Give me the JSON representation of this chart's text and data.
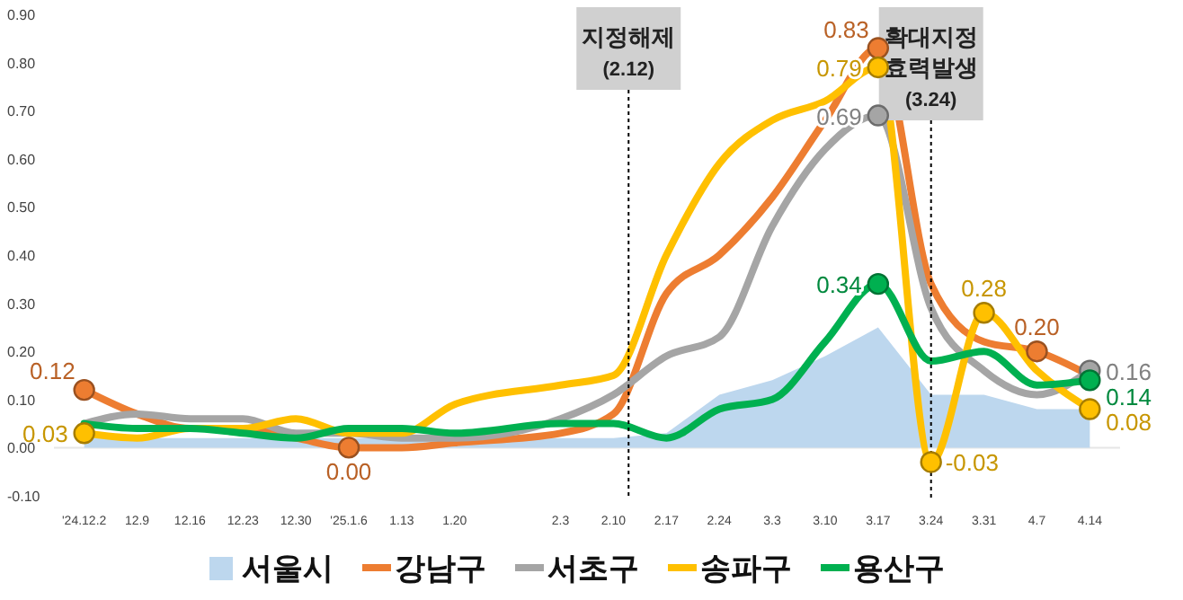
{
  "chart_data": {
    "type": "line",
    "x": [
      "2024-12-02",
      "2024-12-09",
      "2024-12-16",
      "2024-12-23",
      "2024-12-30",
      "2025-01-06",
      "2025-01-13",
      "2025-01-20",
      "2025-02-03",
      "2025-02-10",
      "2025-02-17",
      "2025-02-24",
      "2025-03-03",
      "2025-03-10",
      "2025-03-17",
      "2025-03-24",
      "2025-03-31",
      "2025-04-07",
      "2025-04-14"
    ],
    "xlim": [
      "2024-11-28",
      "2025-04-18"
    ],
    "xticks": [
      {
        "value": "2024-12-02",
        "label": "'24.12.2"
      },
      {
        "value": "2024-12-09",
        "label": "12.9"
      },
      {
        "value": "2024-12-16",
        "label": "12.16"
      },
      {
        "value": "2024-12-23",
        "label": "12.23"
      },
      {
        "value": "2024-12-30",
        "label": "12.30"
      },
      {
        "value": "2025-01-06",
        "label": "'25.1.6"
      },
      {
        "value": "2025-01-13",
        "label": "1.13"
      },
      {
        "value": "2025-01-20",
        "label": "1.20"
      },
      {
        "value": "2025-02-03",
        "label": "2.3"
      },
      {
        "value": "2025-02-10",
        "label": "2.10"
      },
      {
        "value": "2025-02-17",
        "label": "2.17"
      },
      {
        "value": "2025-02-24",
        "label": "2.24"
      },
      {
        "value": "2025-03-03",
        "label": "3.3"
      },
      {
        "value": "2025-03-10",
        "label": "3.10"
      },
      {
        "value": "2025-03-17",
        "label": "3.17"
      },
      {
        "value": "2025-03-24",
        "label": "3.24"
      },
      {
        "value": "2025-03-31",
        "label": "3.31"
      },
      {
        "value": "2025-04-07",
        "label": "4.7"
      },
      {
        "value": "2025-04-14",
        "label": "4.14"
      }
    ],
    "ylim": [
      -0.1,
      0.9
    ],
    "yticks": [
      {
        "value": -0.1,
        "label": "-0.10"
      },
      {
        "value": 0,
        "label": "0.00"
      },
      {
        "value": 0.1,
        "label": "0.10"
      },
      {
        "value": 0.2,
        "label": "0.20"
      },
      {
        "value": 0.3,
        "label": "0.30"
      },
      {
        "value": 0.4,
        "label": "0.40"
      },
      {
        "value": 0.5,
        "label": "0.50"
      },
      {
        "value": 0.6,
        "label": "0.60"
      },
      {
        "value": 0.7,
        "label": "0.70"
      },
      {
        "value": 0.8,
        "label": "0.80"
      },
      {
        "value": 0.9,
        "label": "0.90"
      }
    ],
    "grid": false,
    "legend": "bottom",
    "series": [
      {
        "name": "서울시",
        "type": "area",
        "color": "#bdd7ee",
        "values": [
          0.02,
          0.02,
          0.02,
          0.02,
          0.02,
          0.02,
          0.02,
          0.02,
          0.02,
          0.02,
          0.03,
          0.11,
          0.14,
          0.19,
          0.25,
          0.11,
          0.11,
          0.08,
          0.08
        ]
      },
      {
        "name": "강남구",
        "color": "#ed7d31",
        "values": [
          0.12,
          0.07,
          0.04,
          0.04,
          0.02,
          0.0,
          0.0,
          0.01,
          0.03,
          0.07,
          0.32,
          0.4,
          0.52,
          0.68,
          0.83,
          0.34,
          0.22,
          0.2,
          0.15
        ],
        "value_labels": [
          "0.12",
          null,
          null,
          null,
          null,
          "0.00",
          null,
          null,
          null,
          null,
          null,
          null,
          null,
          null,
          "0.83",
          null,
          null,
          "0.20",
          null
        ]
      },
      {
        "name": "서초구",
        "color": "#a5a5a5",
        "values": [
          0.05,
          0.07,
          0.06,
          0.06,
          0.03,
          0.03,
          0.02,
          0.02,
          0.06,
          0.11,
          0.19,
          0.23,
          0.46,
          0.62,
          0.69,
          0.29,
          0.16,
          0.11,
          0.16
        ],
        "value_labels": [
          null,
          null,
          null,
          null,
          null,
          null,
          null,
          null,
          null,
          null,
          null,
          null,
          null,
          null,
          "0.69",
          null,
          null,
          null,
          "0.16"
        ]
      },
      {
        "name": "송파구",
        "color": "#ffc000",
        "values": [
          0.03,
          0.02,
          0.04,
          0.04,
          0.06,
          0.03,
          0.03,
          0.09,
          0.13,
          0.15,
          0.4,
          0.59,
          0.68,
          0.72,
          0.79,
          -0.03,
          0.28,
          0.16,
          0.08
        ],
        "value_labels": [
          "0.03",
          null,
          null,
          null,
          null,
          null,
          null,
          null,
          null,
          null,
          null,
          null,
          null,
          null,
          "0.79",
          "-0.03",
          "0.28",
          null,
          "0.08"
        ]
      },
      {
        "name": "용산구",
        "color": "#00b050",
        "values": [
          0.05,
          0.04,
          0.04,
          0.03,
          0.02,
          0.04,
          0.04,
          0.03,
          0.05,
          0.05,
          0.02,
          0.08,
          0.1,
          0.22,
          0.34,
          0.18,
          0.2,
          0.13,
          0.14
        ],
        "value_labels": [
          null,
          null,
          null,
          null,
          null,
          null,
          null,
          null,
          null,
          null,
          null,
          null,
          null,
          null,
          "0.34",
          null,
          null,
          null,
          "0.14"
        ]
      }
    ],
    "ref_lines": [
      {
        "axis": "x",
        "value": "2025-02-12",
        "label": "지정해제\n(2.12)",
        "line_style": "dotted",
        "color": "#000000"
      },
      {
        "axis": "x",
        "value": "2025-03-24",
        "label": "확대지정\n효력발생\n(3.24)",
        "line_style": "dotted",
        "color": "#000000"
      }
    ]
  }
}
